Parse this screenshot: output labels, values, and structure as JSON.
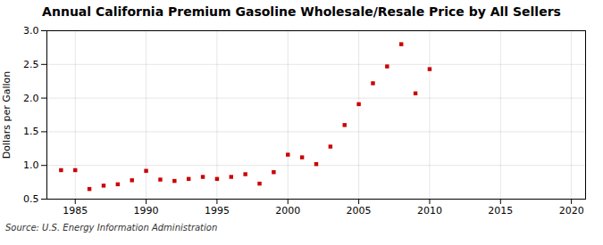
{
  "chart_data": {
    "type": "scatter",
    "title": "Annual California Premium Gasoline Wholesale/Resale Price by All Sellers",
    "ylabel": "Dollars per Gallon",
    "source": "Source: U.S. Energy Information Administration",
    "x": [
      1984,
      1985,
      1986,
      1987,
      1988,
      1989,
      1990,
      1991,
      1992,
      1993,
      1994,
      1995,
      1996,
      1997,
      1998,
      1999,
      2000,
      2001,
      2002,
      2003,
      2004,
      2005,
      2006,
      2007,
      2008,
      2009,
      2010
    ],
    "values": [
      0.93,
      0.93,
      0.65,
      0.7,
      0.72,
      0.78,
      0.92,
      0.79,
      0.77,
      0.8,
      0.83,
      0.8,
      0.83,
      0.87,
      0.73,
      0.9,
      1.16,
      1.12,
      1.02,
      1.28,
      1.6,
      1.91,
      2.22,
      2.47,
      2.8,
      2.07,
      2.43
    ],
    "color": "#cc0000",
    "marker": "square",
    "xlim": [
      1983,
      2021
    ],
    "xticks": [
      1985,
      1990,
      1995,
      2000,
      2005,
      2010,
      2015,
      2020
    ],
    "ylim": [
      0.5,
      3.0
    ],
    "yticks": [
      0.5,
      {
        "value": 1.0,
        "label": "1.0"
      },
      1.5,
      {
        "value": 2.0,
        "label": "2.0"
      },
      2.5,
      {
        "value": 3.0,
        "label": "3.0"
      }
    ],
    "grid": true
  }
}
